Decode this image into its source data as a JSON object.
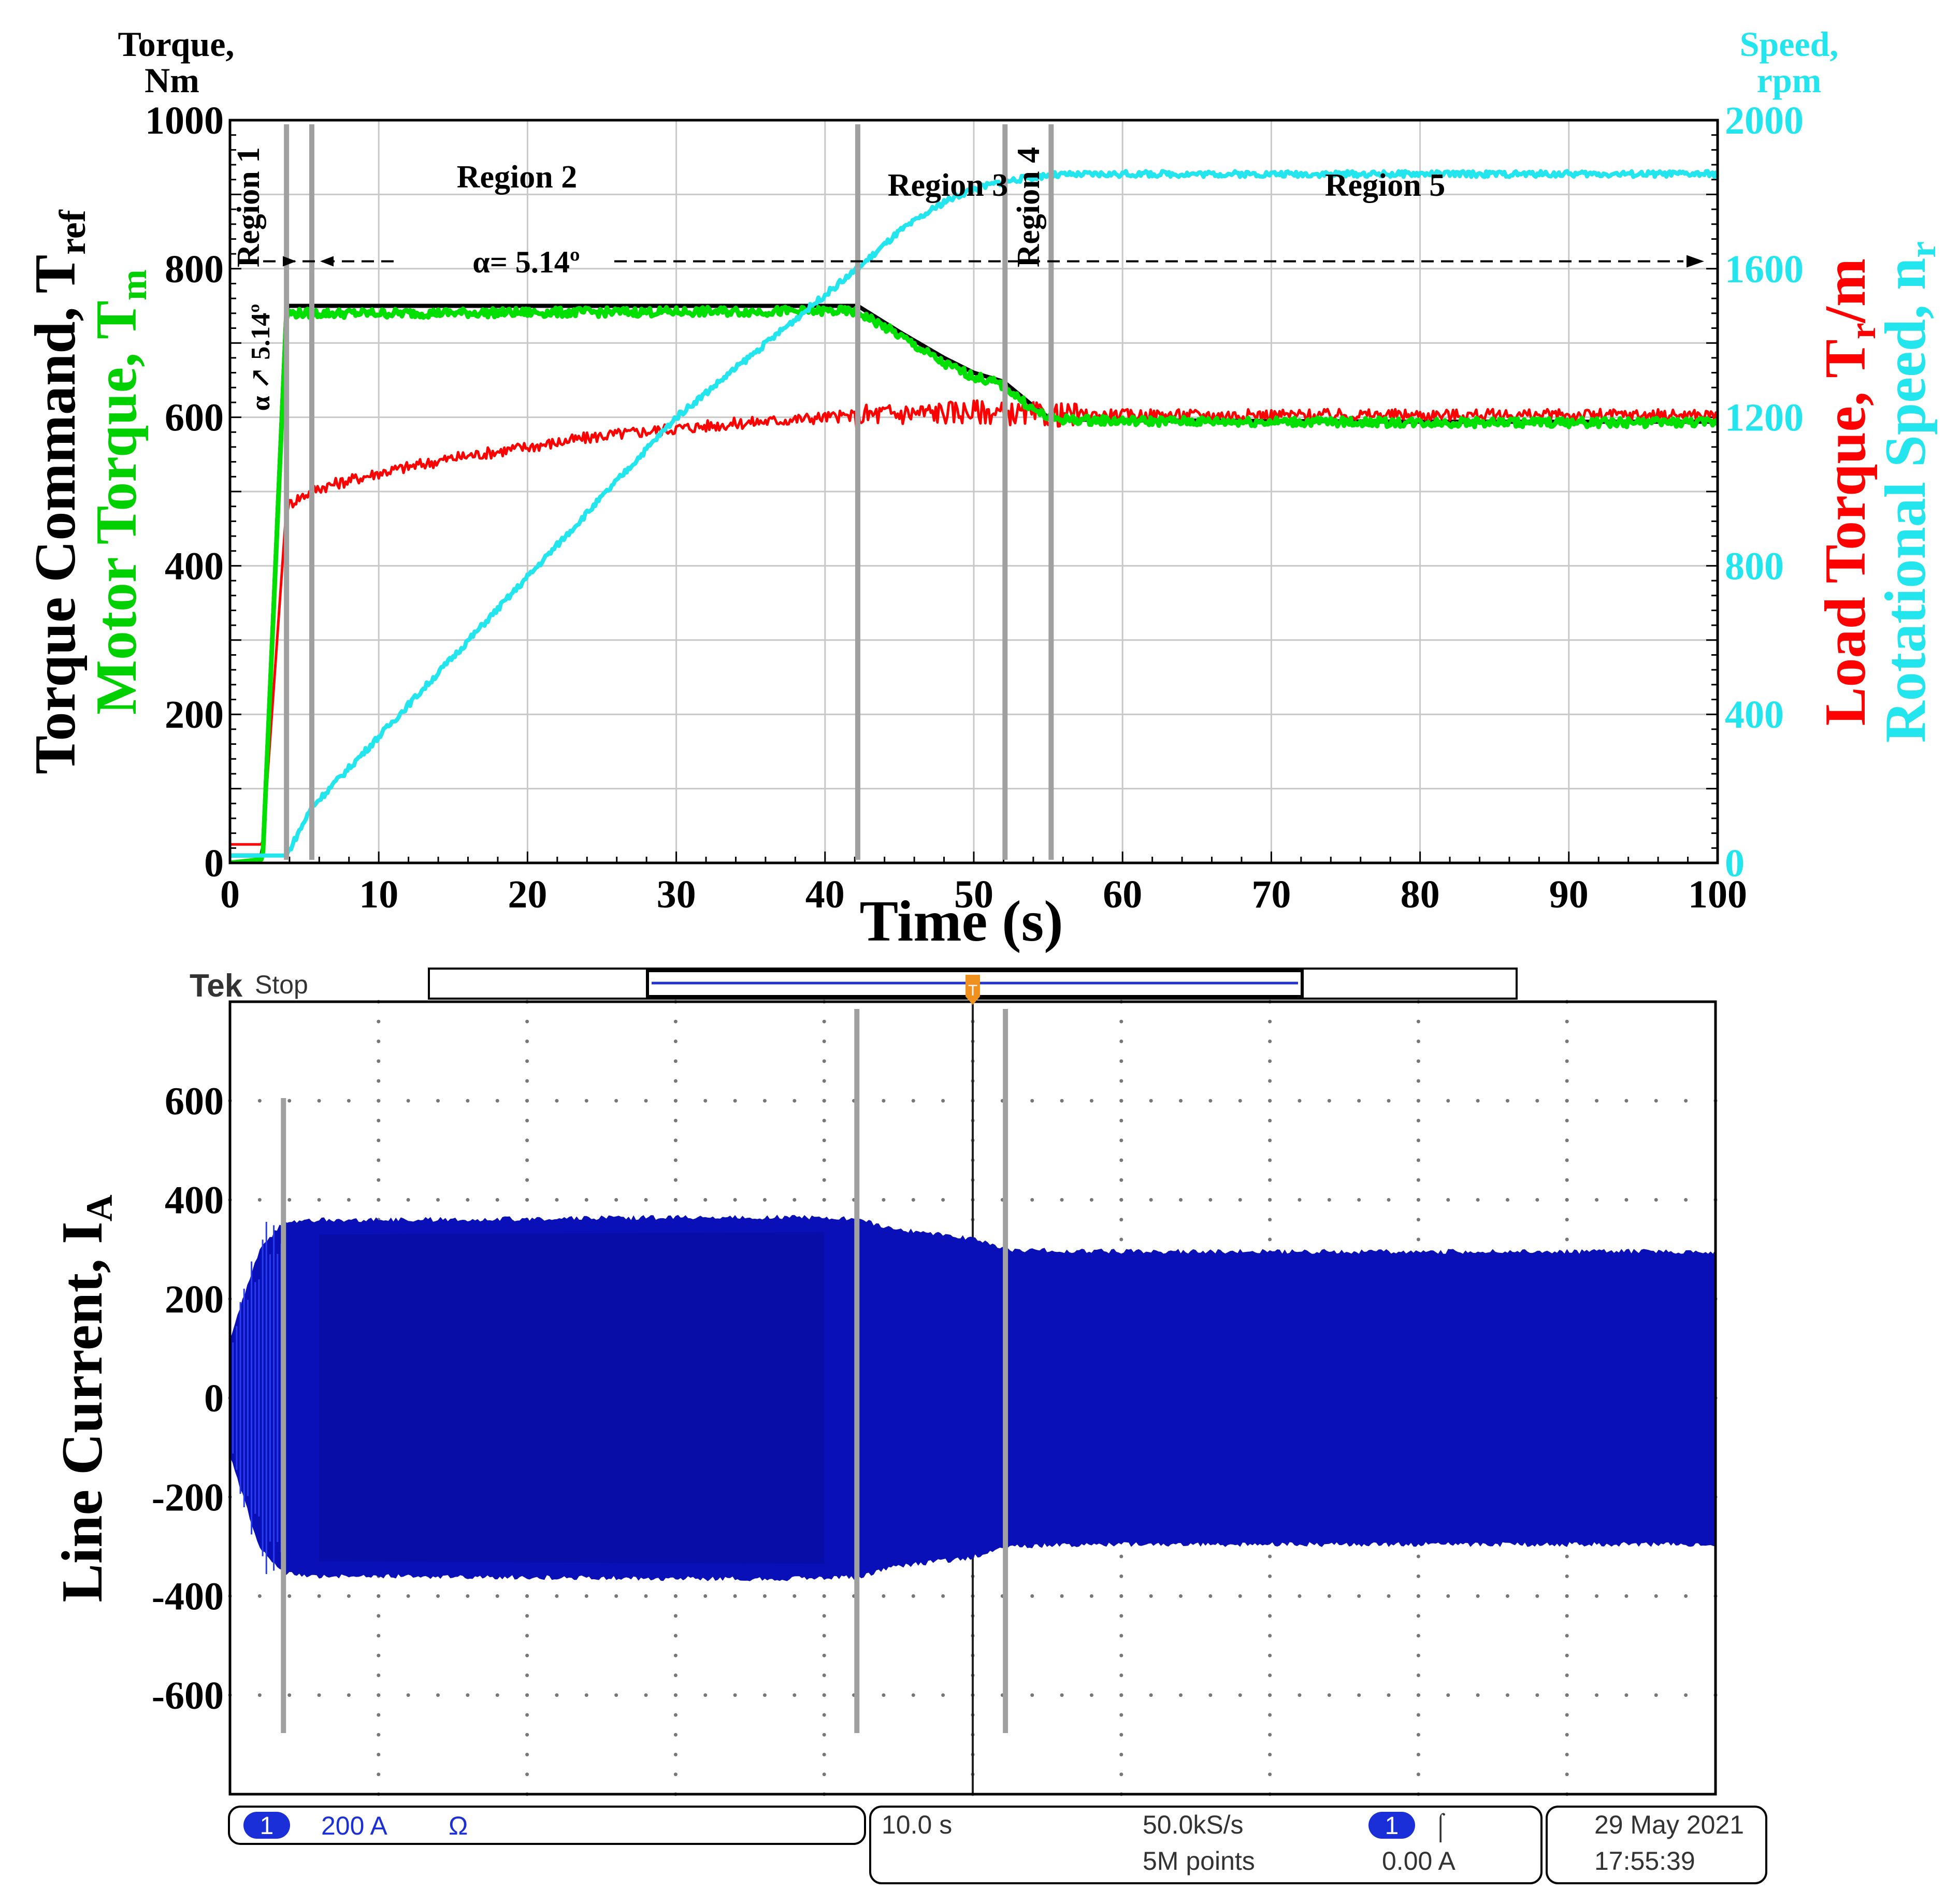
{
  "top_chart": {
    "left_axis_title": [
      "Torque,",
      "Nm"
    ],
    "right_axis_title": [
      "Speed,",
      "rpm"
    ],
    "left_ylabel_1": "Torque Command, T",
    "left_ylabel_1_sub": "ref",
    "left_ylabel_2": "Motor Torque, T",
    "left_ylabel_2_sub": "m",
    "right_ylabel_1": "Load Torque, T",
    "right_ylabel_1_sub": "r",
    "right_ylabel_1_tail": "/m",
    "right_ylabel_2": "Rotational Speed, n",
    "right_ylabel_2_sub": "r",
    "xlabel": "Time (s)",
    "region_labels": [
      "Region 1",
      "Region 2",
      "Region 3",
      "Region 4",
      "Region 5"
    ],
    "alpha_label": "α= 5.14º",
    "ramp_label": "α ↗ 5.14º",
    "colors": {
      "command": "#000000",
      "motor": "#00e000",
      "load": "#ff0000",
      "speed": "#22e5ee",
      "marker": "#a0a0a0"
    }
  },
  "tek": {
    "brand": "Tek",
    "state": "Stop",
    "ch_number": "1",
    "scale": "200 A",
    "coupling_symbol": "Ω",
    "timebase": "10.0 s",
    "sample_rate": "50.0kS/s",
    "record_length": "5M points",
    "trigger_channel": "1",
    "trigger_slope": "⌠",
    "trigger_level": "0.00 A",
    "date": "29 May  2021",
    "time": "17:55:39",
    "ylabel": "Line Current, I",
    "ylabel_sub": "A",
    "colors": {
      "trace": "#0a10b8",
      "badge": "#1a2fd8",
      "trigger": "#f0901e"
    }
  },
  "chart_data": [
    {
      "type": "line",
      "title": "",
      "xlabel": "Time (s)",
      "xlim": [
        0,
        100
      ],
      "x_ticks": [
        0,
        10,
        20,
        30,
        40,
        50,
        60,
        70,
        80,
        90,
        100
      ],
      "ylim_left": [
        0,
        1000
      ],
      "y_ticks_left": [
        0,
        200,
        400,
        600,
        800,
        1000
      ],
      "ylim_right": [
        0,
        2000
      ],
      "y_ticks_right": [
        0,
        400,
        800,
        1200,
        1600,
        2000
      ],
      "grid": true,
      "region_boundaries": [
        3.8,
        5.5,
        42.2,
        52.1,
        55.2
      ],
      "alpha_reference_torque": 810,
      "series": [
        {
          "name": "Torque Command, Tref",
          "axis": "left",
          "x": [
            0,
            2.2,
            3.8,
            5,
            10,
            20,
            30,
            40,
            42.2,
            45,
            48,
            50,
            52,
            54,
            55,
            56,
            60,
            70,
            80,
            90,
            100
          ],
          "y": [
            10,
            10,
            750,
            750,
            750,
            750,
            750,
            750,
            750,
            715,
            680,
            660,
            648,
            615,
            600,
            597,
            596,
            595,
            594,
            594,
            594
          ]
        },
        {
          "name": "Motor Torque, Tm",
          "axis": "left",
          "x": [
            0,
            2.2,
            3.8,
            5,
            10,
            20,
            30,
            40,
            42.2,
            45,
            48,
            50,
            52,
            54,
            55,
            56,
            60,
            70,
            80,
            90,
            100
          ],
          "y": [
            0,
            5,
            740,
            740,
            740,
            741,
            742,
            743,
            742,
            710,
            672,
            655,
            643,
            610,
            600,
            597,
            595,
            594,
            593,
            593,
            593
          ]
        },
        {
          "name": "Load Torque, Tr/m",
          "axis": "left",
          "x": [
            0,
            2.2,
            3.8,
            4.5,
            6,
            10,
            15,
            20,
            25,
            30,
            35,
            40,
            45,
            50,
            55,
            60,
            70,
            80,
            90,
            100
          ],
          "y": [
            25,
            25,
            480,
            490,
            505,
            525,
            545,
            560,
            575,
            585,
            593,
            600,
            605,
            608,
            603,
            603,
            603,
            603,
            603,
            603
          ]
        },
        {
          "name": "Rotational Speed, nr",
          "axis": "right",
          "x": [
            0,
            3.8,
            5.5,
            10,
            20,
            30,
            40,
            42.2,
            45,
            48,
            50,
            52,
            55,
            60,
            70,
            80,
            90,
            100
          ],
          "y": [
            20,
            20,
            150,
            340,
            770,
            1200,
            1530,
            1600,
            1700,
            1780,
            1815,
            1835,
            1852,
            1855,
            1855,
            1855,
            1855,
            1855
          ]
        }
      ]
    },
    {
      "type": "line",
      "title": "",
      "ylabel": "Line Current, IA",
      "ylim": [
        -800,
        800
      ],
      "y_ticks": [
        -600,
        -400,
        -200,
        0,
        200,
        400,
        600
      ],
      "grid": true,
      "marker_divisions": [
        0.36,
        4.22,
        5.22
      ],
      "series": [
        {
          "name": "",
          "kind": "envelope",
          "x_div": [
            0,
            0.2,
            0.36,
            0.6,
            1,
            2,
            3,
            4,
            4.22,
            4.5,
            5,
            5.22,
            5.5,
            6,
            7,
            8,
            9,
            10
          ],
          "upper": [
            120,
            300,
            355,
            360,
            360,
            362,
            365,
            365,
            362,
            340,
            322,
            300,
            298,
            296,
            296,
            296,
            296,
            296
          ],
          "lower": [
            -120,
            -300,
            -355,
            -360,
            -360,
            -362,
            -365,
            -365,
            -362,
            -340,
            -322,
            -300,
            -298,
            -296,
            -296,
            -296,
            -296,
            -296
          ]
        }
      ]
    }
  ]
}
